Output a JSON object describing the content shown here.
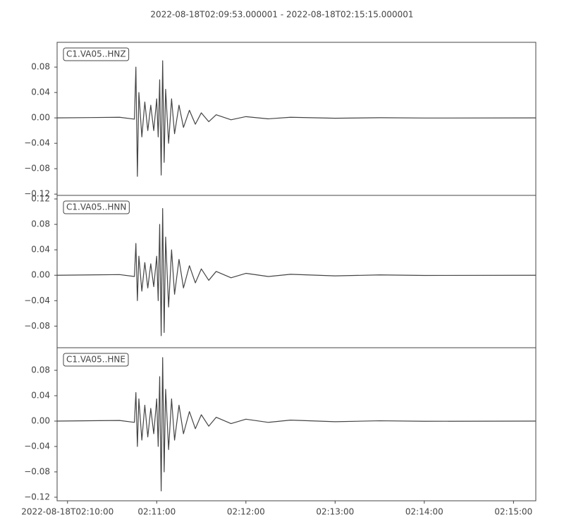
{
  "title": "2022-08-18T02:09:53.000001  -  2022-08-18T02:15:15.000001",
  "time_axis": {
    "xlim": [
      "2022-08-18T02:09:53",
      "2022-08-18T02:15:15"
    ],
    "xticks": [
      "2022-08-18T02:10:00",
      {
        "value": "2022-08-18T02:11:00",
        "label": "02:11:00"
      },
      {
        "value": "2022-08-18T02:12:00",
        "label": "02:12:00"
      },
      {
        "value": "2022-08-18T02:13:00",
        "label": "02:13:00"
      },
      {
        "value": "2022-08-18T02:14:00",
        "label": "02:14:00"
      },
      {
        "value": "2022-08-18T02:15:00",
        "label": "02:15:00"
      }
    ],
    "x": [
      "02:09:53",
      "02:10:35",
      "02:10:45",
      "02:10:46",
      "02:10:47",
      "02:10:48",
      "02:10:50",
      "02:10:52",
      "02:10:54",
      "02:10:56",
      "02:10:58",
      "02:11:00",
      "02:11:01",
      "02:11:02",
      "02:11:03",
      "02:11:04",
      "02:11:05",
      "02:11:06",
      "02:11:08",
      "02:11:10",
      "02:11:12",
      "02:11:15",
      "02:11:18",
      "02:11:22",
      "02:11:26",
      "02:11:30",
      "02:11:35",
      "02:11:40",
      "02:11:50",
      "02:12:00",
      "02:12:15",
      "02:12:30",
      "02:13:00",
      "02:13:30",
      "02:14:00",
      "02:15:15"
    ]
  },
  "chart_data": [
    {
      "type": "line",
      "label": "C1.VA05..HNZ",
      "color": "#444444",
      "ylim": [
        -0.122,
        0.119
      ],
      "yticks": [
        {
          "value": -0.12,
          "label": "−0.12"
        },
        {
          "value": -0.08,
          "label": "−0.08"
        },
        {
          "value": -0.04,
          "label": "−0.04"
        },
        {
          "value": 0,
          "label": "0.00"
        },
        {
          "value": 0.04,
          "label": "0.04"
        },
        {
          "value": 0.08,
          "label": "0.08"
        }
      ],
      "values": [
        0,
        0.001,
        -0.002,
        0.08,
        -0.092,
        0.04,
        -0.03,
        0.025,
        -0.02,
        0.02,
        -0.02,
        0.03,
        -0.03,
        0.06,
        -0.09,
        0.09,
        -0.07,
        0.045,
        -0.04,
        0.03,
        -0.025,
        0.02,
        -0.015,
        0.012,
        -0.01,
        0.008,
        -0.006,
        0.005,
        -0.003,
        0.002,
        -0.0015,
        0.001,
        -0.0005,
        0.0003,
        -0.0002,
        0
      ]
    },
    {
      "type": "line",
      "label": "C1.VA05..HNN",
      "color": "#444444",
      "ylim": [
        -0.114,
        0.1256
      ],
      "yticks": [
        {
          "value": -0.08,
          "label": "−0.08"
        },
        {
          "value": -0.04,
          "label": "−0.04"
        },
        {
          "value": 0,
          "label": "0.00"
        },
        {
          "value": 0.04,
          "label": "0.04"
        },
        {
          "value": 0.08,
          "label": "0.08"
        },
        {
          "value": 0.12,
          "label": "0.12"
        }
      ],
      "values": [
        0,
        0.001,
        -0.002,
        0.05,
        -0.04,
        0.03,
        -0.025,
        0.02,
        -0.02,
        0.018,
        -0.018,
        0.03,
        -0.04,
        0.08,
        -0.095,
        0.105,
        -0.09,
        0.06,
        -0.05,
        0.04,
        -0.03,
        0.025,
        -0.02,
        0.015,
        -0.012,
        0.01,
        -0.008,
        0.006,
        -0.004,
        0.003,
        -0.002,
        0.0015,
        -0.001,
        0.0005,
        -0.0003,
        0
      ]
    },
    {
      "type": "line",
      "label": "C1.VA05..HNE",
      "color": "#444444",
      "ylim": [
        -0.1256,
        0.1156
      ],
      "yticks": [
        {
          "value": -0.12,
          "label": "−0.12"
        },
        {
          "value": -0.08,
          "label": "−0.08"
        },
        {
          "value": -0.04,
          "label": "−0.04"
        },
        {
          "value": 0,
          "label": "0.00"
        },
        {
          "value": 0.04,
          "label": "0.04"
        },
        {
          "value": 0.08,
          "label": "0.08"
        }
      ],
      "values": [
        0,
        0.001,
        -0.002,
        0.045,
        -0.04,
        0.035,
        -0.03,
        0.025,
        -0.025,
        0.02,
        -0.02,
        0.035,
        -0.04,
        0.07,
        -0.11,
        0.1,
        -0.08,
        0.05,
        -0.045,
        0.035,
        -0.03,
        0.025,
        -0.02,
        0.015,
        -0.012,
        0.01,
        -0.008,
        0.006,
        -0.004,
        0.003,
        -0.002,
        0.0015,
        -0.001,
        0.0005,
        -0.0003,
        0
      ]
    }
  ]
}
